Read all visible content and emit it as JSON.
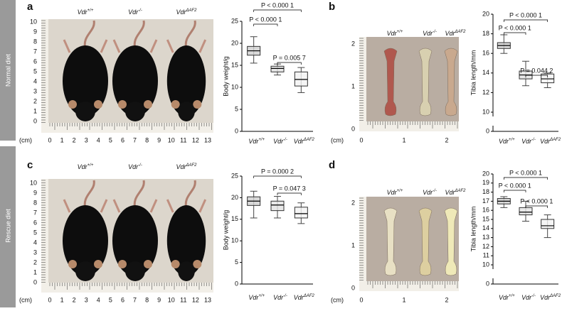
{
  "row_labels": [
    "Normal diet",
    "Rescue diet"
  ],
  "photos": [
    {
      "letter": "a",
      "groups": [
        {
          "base": "Vdr",
          "sup": "+/+"
        },
        {
          "base": "Vdr",
          "sup": "-/-"
        },
        {
          "base": "Vdr",
          "sup": "ΔAF2"
        }
      ],
      "ruler_y": [
        0,
        1,
        2,
        3,
        4,
        5,
        6,
        7,
        8,
        9,
        10
      ],
      "unit": "(cm)",
      "ruler_x": [
        0,
        1,
        2,
        3,
        4,
        5,
        6,
        7,
        8,
        9,
        10,
        11,
        12,
        13
      ]
    },
    {
      "letter": "b",
      "groups": [
        {
          "base": "Vdr",
          "sup": "+/+"
        },
        {
          "base": "Vdr",
          "sup": "-/-"
        },
        {
          "base": "Vdr",
          "sup": "ΔAF2"
        }
      ],
      "ruler_y": [
        0,
        1,
        2
      ],
      "unit": "(cm)",
      "ruler_x": [
        0,
        1,
        2
      ]
    },
    {
      "letter": "c",
      "groups": [
        {
          "base": "Vdr",
          "sup": "+/+"
        },
        {
          "base": "Vdr",
          "sup": "-/-"
        },
        {
          "base": "Vdr",
          "sup": "ΔAF2"
        }
      ],
      "ruler_y": [
        0,
        1,
        2,
        3,
        4,
        5,
        6,
        7,
        8,
        9,
        10
      ],
      "unit": "(cm)",
      "ruler_x": [
        0,
        1,
        2,
        3,
        4,
        5,
        6,
        7,
        8,
        9,
        10,
        11,
        12,
        13
      ]
    },
    {
      "letter": "d",
      "groups": [
        {
          "base": "Vdr",
          "sup": "+/+"
        },
        {
          "base": "Vdr",
          "sup": "-/-"
        },
        {
          "base": "Vdr",
          "sup": "ΔAF2"
        }
      ],
      "ruler_y": [
        0,
        1,
        2
      ],
      "unit": "(cm)",
      "ruler_x": [
        0,
        1,
        2
      ]
    }
  ],
  "chart_data": [
    {
      "type": "box",
      "y_label": "Body weight/g",
      "ylim": [
        0,
        25
      ],
      "yticks": [
        0,
        5,
        10,
        15,
        20,
        25
      ],
      "categories": [
        {
          "base": "Vdr",
          "sup": "+/+"
        },
        {
          "base": "Vdr",
          "sup": "-/-"
        },
        {
          "base": "Vdr",
          "sup": "ΔAF2"
        }
      ],
      "boxes": [
        {
          "min": 15.5,
          "q1": 17.3,
          "median": 18.3,
          "q3": 19.3,
          "max": 21.5
        },
        {
          "min": 12.8,
          "q1": 13.5,
          "median": 14.3,
          "q3": 14.8,
          "max": 15.3
        },
        {
          "min": 8.8,
          "q1": 10.3,
          "median": 11.8,
          "q3": 13.5,
          "max": 14.5
        }
      ],
      "annotations": [
        "P < 0.000 1",
        "P < 0.000 1",
        "P = 0.005 7"
      ]
    },
    {
      "type": "box",
      "y_label": "Tibia length/mm",
      "ylim": [
        10,
        20
      ],
      "yticks": [
        0,
        10,
        12,
        14,
        16,
        18,
        20
      ],
      "axis_break": true,
      "categories": [
        {
          "base": "Vdr",
          "sup": "+/+"
        },
        {
          "base": "Vdr",
          "sup": "-/-"
        },
        {
          "base": "Vdr",
          "sup": "ΔAF2"
        }
      ],
      "boxes": [
        {
          "min": 16.0,
          "q1": 16.5,
          "median": 16.8,
          "q3": 17.1,
          "max": 17.9
        },
        {
          "min": 12.7,
          "q1": 13.4,
          "median": 13.8,
          "q3": 14.2,
          "max": 15.2
        },
        {
          "min": 12.5,
          "q1": 13.0,
          "median": 13.4,
          "q3": 13.9,
          "max": 14.0
        }
      ],
      "annotations": [
        "P < 0.000 1",
        "P < 0.000 1",
        "P = 0.044 2"
      ]
    },
    {
      "type": "box",
      "y_label": "Body weight/g",
      "ylim": [
        0,
        25
      ],
      "yticks": [
        0,
        5,
        10,
        15,
        20,
        25
      ],
      "categories": [
        {
          "base": "Vdr",
          "sup": "+/+"
        },
        {
          "base": "Vdr",
          "sup": "-/-"
        },
        {
          "base": "Vdr",
          "sup": "ΔAF2"
        }
      ],
      "boxes": [
        {
          "min": 15.3,
          "q1": 18.2,
          "median": 19.2,
          "q3": 20.2,
          "max": 21.5
        },
        {
          "min": 15.3,
          "q1": 17.0,
          "median": 18.3,
          "q3": 19.2,
          "max": 20.3
        },
        {
          "min": 14.0,
          "q1": 15.3,
          "median": 16.3,
          "q3": 17.8,
          "max": 18.8
        }
      ],
      "annotations": [
        "P = 0.000 2",
        "P = 0.047 3"
      ]
    },
    {
      "type": "box",
      "y_label": "Tibia length/mm",
      "ylim": [
        10,
        20
      ],
      "yticks": [
        0,
        10,
        11,
        12,
        13,
        14,
        15,
        16,
        17,
        18,
        19,
        20
      ],
      "axis_break": true,
      "categories": [
        {
          "base": "Vdr",
          "sup": "+/+"
        },
        {
          "base": "Vdr",
          "sup": "-/-"
        },
        {
          "base": "Vdr",
          "sup": "ΔAF2"
        }
      ],
      "boxes": [
        {
          "min": 16.3,
          "q1": 16.7,
          "median": 17.0,
          "q3": 17.3,
          "max": 17.5
        },
        {
          "min": 14.8,
          "q1": 15.5,
          "median": 15.8,
          "q3": 16.3,
          "max": 17.0
        },
        {
          "min": 13.0,
          "q1": 14.0,
          "median": 14.3,
          "q3": 15.0,
          "max": 15.5
        }
      ],
      "annotations": [
        "P < 0.000 1",
        "P < 0.000 1",
        "P < 0.000 1"
      ]
    }
  ]
}
